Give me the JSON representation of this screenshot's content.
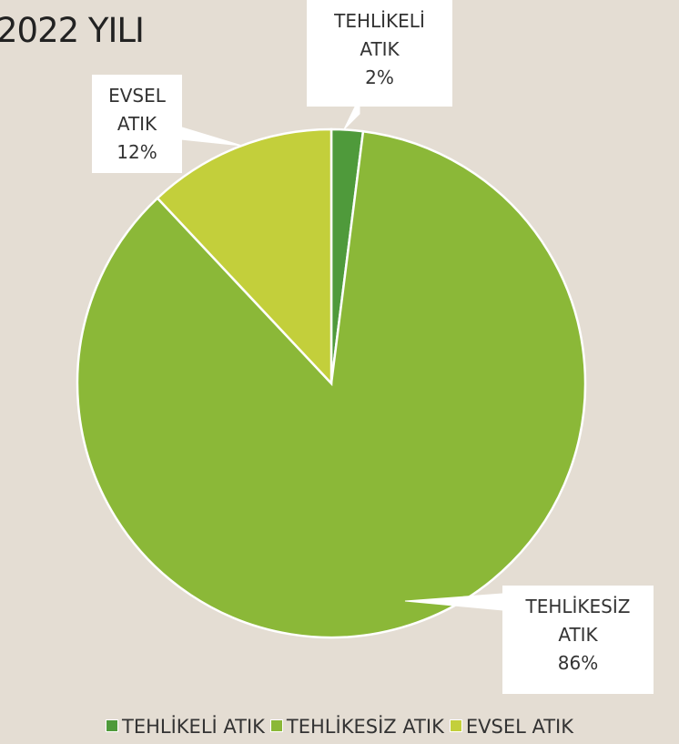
{
  "chart_data": {
    "type": "pie",
    "title": "2022 YILI",
    "categories": [
      "TEHLİKELİ ATIK",
      "TEHLİKESİZ ATIK",
      "EVSEL ATIK"
    ],
    "values": [
      2,
      86,
      12
    ],
    "value_labels": [
      "2%",
      "86%",
      "12%"
    ],
    "colors": [
      "#4f9a3b",
      "#8bb838",
      "#c3cf3b"
    ],
    "legend": "bottom"
  }
}
